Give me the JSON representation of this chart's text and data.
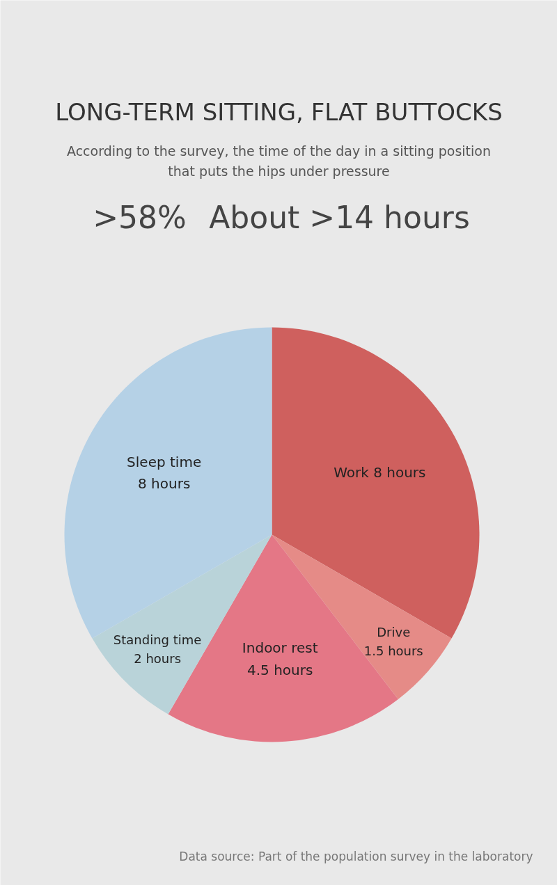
{
  "chart_data": {
    "type": "pie",
    "title": "LONG-TERM SITTING, FLAT BUTTOCKS",
    "subtitle": "According to the survey, the time of the day in a sitting position\nthat puts the hips under pressure",
    "categories": [
      "Work 8 hours",
      "Drive\n1.5 hours",
      "Indoor rest\n4.5 hours",
      "Standing time\n2 hours",
      "Sleep time\n8 hours"
    ],
    "values": [
      8,
      1.5,
      4.5,
      2,
      8
    ],
    "colors": [
      "#cf605e",
      "#e58b87",
      "#e47786",
      "#b9d3d9",
      "#b5d1e6"
    ],
    "annotations": [
      ">58%",
      "About >14 hours",
      "Data source: Part of the population survey in the laboratory"
    ]
  }
}
